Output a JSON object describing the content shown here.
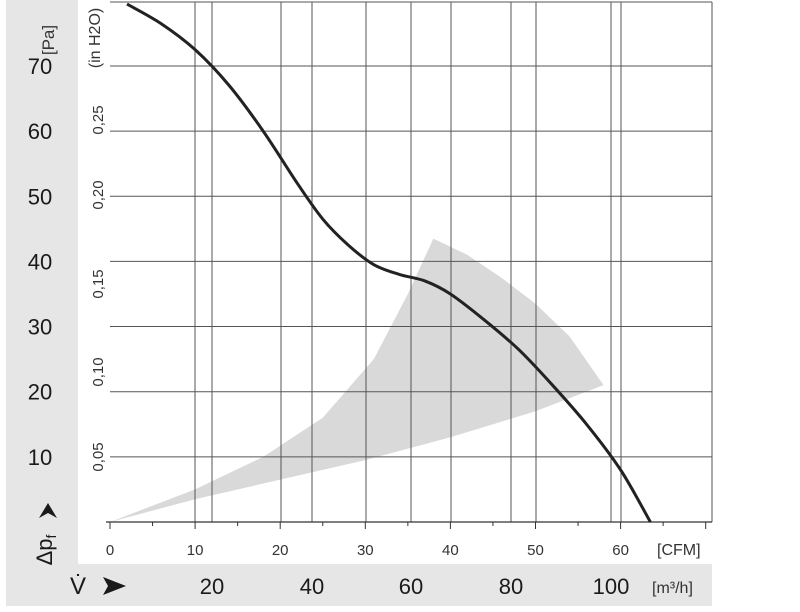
{
  "chart_data": {
    "type": "line",
    "title": "",
    "ylabel": "Δp",
    "ylabel_subscript": "f",
    "ylabel_unit": "[Pa]",
    "ylabel2_unit": "(in H2O)",
    "xlabel": "V̇",
    "xlabel_unit": "[m³/h]",
    "xlabel2_unit": "[CFM]",
    "xlim": [
      0,
      70
    ],
    "ylim": [
      0,
      80
    ],
    "grid": true,
    "pa_ticks": [
      "10",
      "20",
      "30",
      "40",
      "50",
      "60",
      "70"
    ],
    "in_h2o_ticks": [
      "0,05",
      "0,10",
      "0,15",
      "0,20",
      "0,25"
    ],
    "cfm_ticks": [
      "0",
      "10",
      "20",
      "30",
      "40",
      "50",
      "60"
    ],
    "m3h_ticks": [
      "20",
      "40",
      "60",
      "80",
      "100"
    ],
    "series": [
      {
        "x": [
          2,
          6,
          10,
          14,
          18,
          22,
          25,
          28,
          31,
          34,
          37,
          40,
          44,
          48,
          52,
          56,
          60,
          63.5
        ],
        "y": [
          79.5,
          76.5,
          72.5,
          67,
          60,
          52,
          46.5,
          42.5,
          39.5,
          38,
          37,
          35,
          31,
          26.5,
          21,
          15,
          8,
          0
        ]
      }
    ],
    "operating_range": {
      "outer_arc": {
        "x": [
          38,
          42,
          46,
          50,
          54,
          58
        ],
        "y": [
          43.5,
          41,
          37.5,
          33.5,
          28.5,
          21
        ]
      },
      "inner_arc": {
        "x": [
          0,
          10,
          20,
          30,
          40,
          50,
          58
        ],
        "y": [
          0,
          3.5,
          6.5,
          9.5,
          13,
          17,
          21
        ]
      },
      "left_edge": {
        "x": [
          0,
          10,
          18,
          25,
          31,
          35,
          38
        ],
        "y": [
          0,
          5,
          10,
          16,
          25,
          35,
          43.5
        ]
      }
    },
    "colors": {
      "curve": "#222222",
      "operating_range": "#d9d9d9",
      "axis_band": "#e6e6e6",
      "grid": "#555555"
    }
  }
}
